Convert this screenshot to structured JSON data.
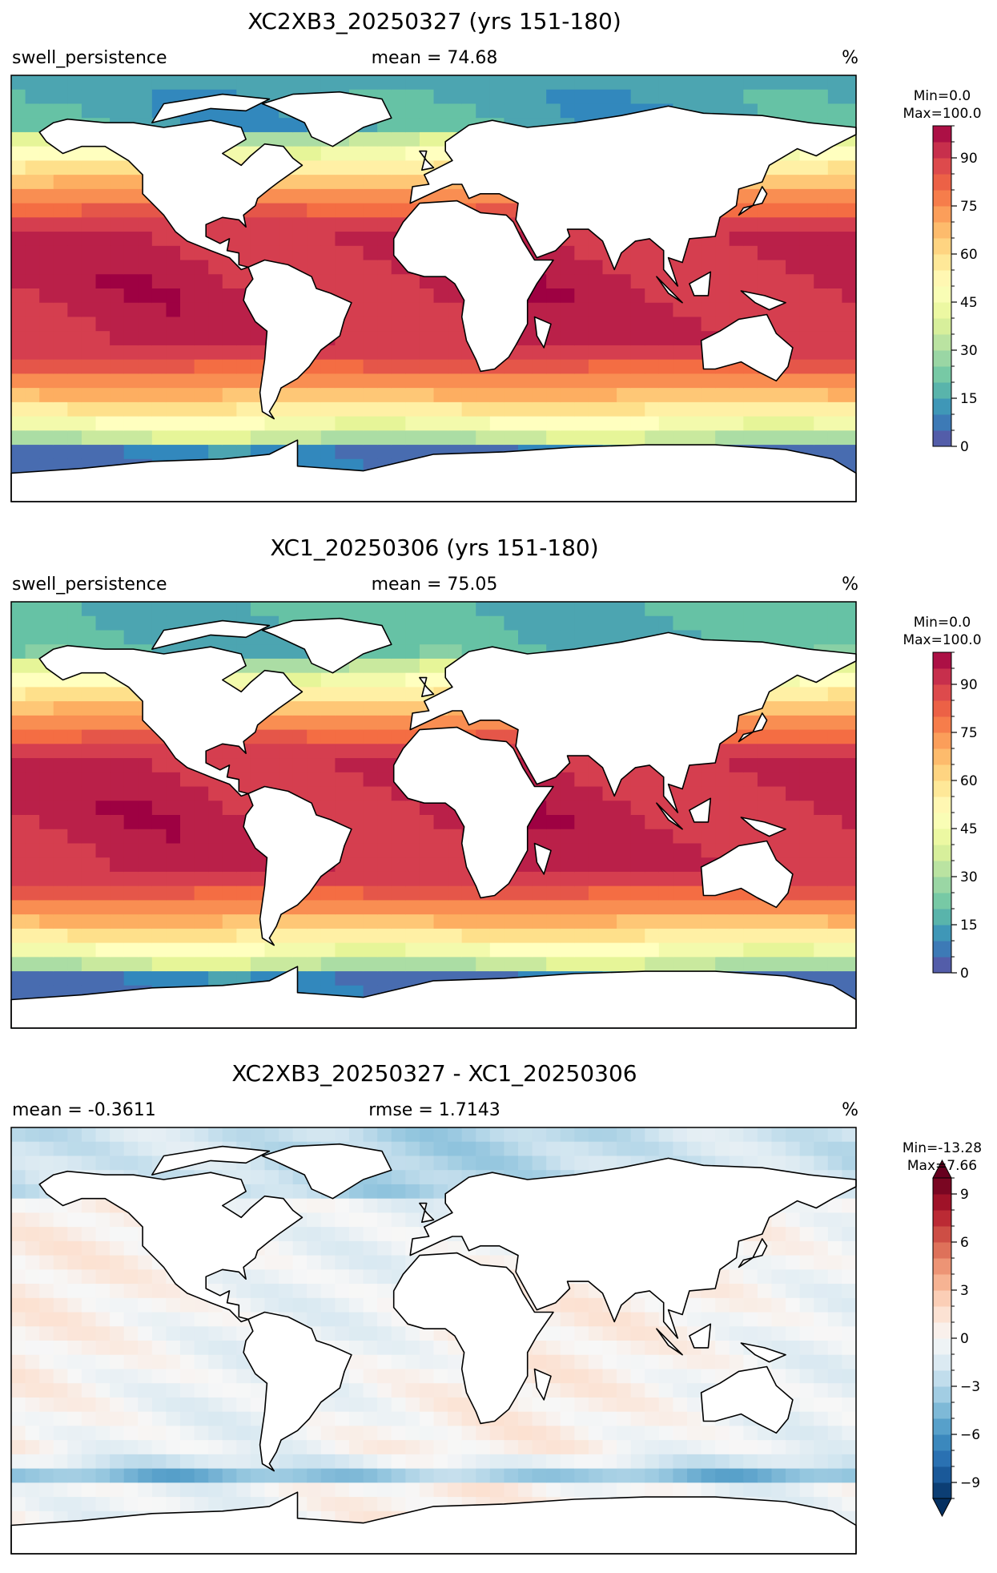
{
  "panels": [
    {
      "title": "XC2XB3_20250327 (yrs 151-180)",
      "left_label": "swell_persistence",
      "center_label": "mean = 74.68",
      "right_label": "%",
      "minmax_line1": "Min=0.0",
      "minmax_line2": "Max=100.0"
    },
    {
      "title": "XC1_20250306 (yrs 151-180)",
      "left_label": "swell_persistence",
      "center_label": "mean = 75.05",
      "right_label": "%",
      "minmax_line1": "Min=0.0",
      "minmax_line2": "Max=100.0"
    },
    {
      "title": "XC2XB3_20250327 - XC1_20250306",
      "left_label": "mean = -0.3611",
      "center_label": "rmse = 1.7143",
      "right_label": "%",
      "minmax_line1": "Min=-13.28",
      "minmax_line2": "Max=7.66"
    }
  ],
  "chart_data": [
    {
      "type": "heatmap",
      "projection": "global map (lon -180..180, lat -90..90)",
      "field": "swell_persistence",
      "units": "%",
      "colormap": "Spectral_r",
      "colorbar": {
        "range": [
          0,
          100
        ],
        "levels_step": 5,
        "ticks": [
          0,
          15,
          30,
          45,
          60,
          75,
          90
        ],
        "tick_labels": [
          "0",
          "15",
          "30",
          "45",
          "60",
          "75",
          "90"
        ]
      },
      "mean": 74.68
    },
    {
      "type": "heatmap",
      "projection": "global map (lon -180..180, lat -90..90)",
      "field": "swell_persistence",
      "units": "%",
      "colormap": "Spectral_r",
      "colorbar": {
        "range": [
          0,
          100
        ],
        "levels_step": 5,
        "ticks": [
          0,
          15,
          30,
          45,
          60,
          75,
          90
        ],
        "tick_labels": [
          "0",
          "15",
          "30",
          "45",
          "60",
          "75",
          "90"
        ]
      },
      "mean": 75.05
    },
    {
      "type": "heatmap",
      "projection": "global map (lon -180..180, lat -90..90)",
      "units": "%",
      "colormap": "RdBu_r",
      "colorbar": {
        "range": [
          -10,
          10
        ],
        "levels_step": 1,
        "extend": "both",
        "ticks": [
          -9,
          -6,
          -3,
          0,
          3,
          6,
          9
        ],
        "tick_labels": [
          "−9",
          "−6",
          "−3",
          "0",
          "3",
          "6",
          "9"
        ]
      },
      "mean": -0.3611,
      "rmse": 1.7143
    }
  ]
}
